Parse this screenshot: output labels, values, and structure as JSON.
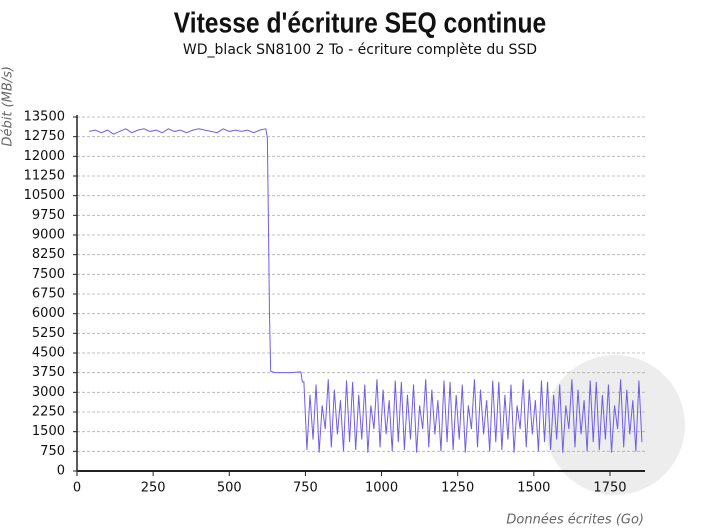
{
  "chart_data": {
    "type": "line",
    "title": "Vitesse d'écriture SEQ continue",
    "subtitle": "WD_black SN8100 2 To - écriture complète du SSD",
    "y_label": "Débit (MB/s)",
    "x_label": "Données écrites (Go)",
    "xlim": [
      0,
      1865
    ],
    "ylim": [
      0,
      13500
    ],
    "xticks": [
      0,
      250,
      500,
      750,
      1000,
      1250,
      1500,
      1750
    ],
    "yticks": [
      0,
      750,
      1500,
      2250,
      3000,
      3750,
      4500,
      5250,
      6000,
      6750,
      7500,
      8250,
      9000,
      9750,
      10500,
      11250,
      12000,
      12750,
      13500
    ],
    "grid": true,
    "x": [
      40,
      60,
      80,
      100,
      120,
      140,
      160,
      180,
      200,
      220,
      240,
      260,
      280,
      300,
      320,
      340,
      360,
      380,
      400,
      420,
      440,
      460,
      480,
      500,
      520,
      540,
      560,
      580,
      600,
      620,
      625,
      628,
      632,
      636,
      650,
      700,
      735,
      740,
      745,
      755,
      765,
      775,
      785,
      795,
      805,
      815,
      825,
      835,
      845,
      855,
      865,
      875,
      885,
      895,
      905,
      915,
      925,
      935,
      945,
      955,
      965,
      975,
      985,
      995,
      1005,
      1015,
      1025,
      1035,
      1045,
      1055,
      1065,
      1075,
      1085,
      1095,
      1105,
      1115,
      1125,
      1135,
      1145,
      1155,
      1165,
      1175,
      1185,
      1195,
      1205,
      1215,
      1225,
      1235,
      1245,
      1255,
      1265,
      1275,
      1285,
      1295,
      1305,
      1315,
      1325,
      1335,
      1345,
      1355,
      1365,
      1375,
      1385,
      1395,
      1405,
      1415,
      1425,
      1435,
      1445,
      1455,
      1465,
      1475,
      1485,
      1495,
      1505,
      1515,
      1525,
      1535,
      1545,
      1555,
      1565,
      1575,
      1585,
      1595,
      1605,
      1615,
      1625,
      1635,
      1645,
      1655,
      1665,
      1675,
      1685,
      1695,
      1705,
      1715,
      1725,
      1735,
      1745,
      1755,
      1765,
      1775,
      1785,
      1795,
      1805,
      1815,
      1825,
      1835,
      1845,
      1855
    ],
    "series": [
      {
        "color": "#6f5ee8",
        "values": [
          12950,
          13000,
          12900,
          13000,
          12850,
          12950,
          13050,
          12900,
          13000,
          13050,
          12950,
          13000,
          12900,
          13050,
          12950,
          13000,
          12900,
          13000,
          13050,
          13000,
          12950,
          12900,
          13050,
          12950,
          13000,
          12950,
          13000,
          12900,
          13000,
          13050,
          12700,
          10000,
          6000,
          3800,
          3750,
          3750,
          3780,
          3400,
          3400,
          800,
          2900,
          1200,
          3300,
          700,
          2500,
          1600,
          3500,
          900,
          3100,
          1400,
          2700,
          750,
          3450,
          1100,
          3400,
          800,
          2900,
          1200,
          3300,
          700,
          2500,
          1600,
          3500,
          900,
          3100,
          1400,
          2700,
          750,
          3450,
          1100,
          3400,
          800,
          2900,
          1200,
          3300,
          700,
          2500,
          1600,
          3500,
          900,
          3100,
          1400,
          2700,
          750,
          3450,
          1100,
          3400,
          800,
          2900,
          1200,
          3300,
          700,
          2500,
          1600,
          3500,
          900,
          3100,
          1400,
          2700,
          750,
          3450,
          1100,
          3400,
          800,
          2900,
          1200,
          3300,
          700,
          2500,
          1600,
          3500,
          900,
          3100,
          1400,
          2700,
          750,
          3450,
          1100,
          3400,
          800,
          2900,
          1200,
          3300,
          700,
          2500,
          1600,
          3500,
          900,
          3100,
          1400,
          2700,
          750,
          3450,
          1100,
          3400,
          800,
          2900,
          1200,
          3300,
          700,
          2500,
          1600,
          3500,
          900,
          3100,
          1400,
          2700,
          750,
          3450,
          1100
        ]
      }
    ]
  }
}
